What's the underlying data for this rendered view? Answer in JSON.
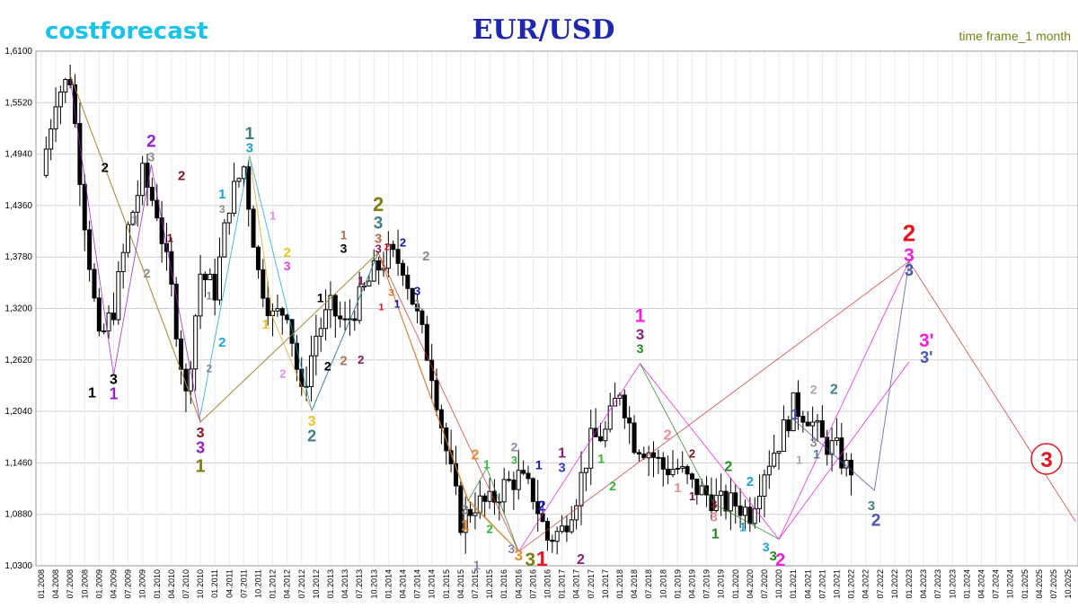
{
  "header": {
    "brand": "costforecast",
    "title": "EUR/USD",
    "timeframe": "time frame_1 month"
  },
  "chart_data": {
    "type": "candlestick",
    "title": "EUR/USD",
    "timeframe": "1 month",
    "ylim": [
      1.03,
      1.61
    ],
    "y_ticks": [
      "1,6100",
      "1,5520",
      "1,4940",
      "1,4360",
      "1,3780",
      "1,3200",
      "1,2620",
      "1,2040",
      "1,1460",
      "1,0880",
      "1,0300"
    ],
    "y_tick_values": [
      1.61,
      1.552,
      1.494,
      1.436,
      1.378,
      1.32,
      1.262,
      1.204,
      1.146,
      1.088,
      1.03
    ],
    "x_ticks": [
      "01.2008",
      "04.2008",
      "07.2008",
      "10.2008",
      "01.2009",
      "04.2009",
      "07.2009",
      "10.2009",
      "01.2010",
      "04.2010",
      "07.2010",
      "10.2010",
      "01.2011",
      "04.2011",
      "07.2011",
      "10.2011",
      "01.2012",
      "04.2012",
      "07.2012",
      "10.2012",
      "01.2013",
      "04.2013",
      "07.2013",
      "10.2013",
      "01.2014",
      "04.2014",
      "07.2014",
      "10.2014",
      "01.2015",
      "04.2015",
      "07.2015",
      "10.2015",
      "01.2016",
      "04.2016",
      "07.2016",
      "10.2016",
      "01.2017",
      "04.2017",
      "07.2017",
      "10.2017",
      "01.2018",
      "04.2018",
      "07.2018",
      "10.2018",
      "01.2019",
      "04.2019",
      "07.2019",
      "10.2019",
      "01.2020",
      "04.2020",
      "07.2020",
      "10.2020",
      "01.2021",
      "04.2021",
      "07.2021",
      "10.2021",
      "01.2022",
      "04.2022",
      "07.2022",
      "10.2022",
      "01.2023",
      "04.2023",
      "07.2023",
      "10.2023",
      "01.2024",
      "04.2024",
      "07.2024",
      "10.2024",
      "01.2025",
      "04.2025",
      "07.2025",
      "10.2025"
    ],
    "x_tick_quarter_index": [
      0,
      1,
      2,
      3,
      4,
      5,
      6,
      7,
      8,
      9,
      10,
      11,
      12,
      13,
      14,
      15,
      16,
      17,
      18,
      19,
      20,
      21,
      22,
      23,
      24,
      25,
      26,
      27,
      28,
      29,
      30,
      31,
      32,
      33,
      34,
      35,
      36,
      37,
      38,
      39,
      40,
      41,
      42,
      43,
      44,
      45,
      46,
      47,
      48,
      49,
      50,
      51,
      52,
      53,
      54,
      55,
      56,
      57,
      58,
      59,
      60,
      61,
      62,
      63,
      64,
      65,
      66,
      67,
      68,
      69,
      70,
      71
    ],
    "grid": true,
    "price_path_quarterly": [
      [
        0,
        1.47
      ],
      [
        1,
        1.56
      ],
      [
        2,
        1.58
      ],
      [
        3,
        1.42
      ],
      [
        4,
        1.28
      ],
      [
        5,
        1.32
      ],
      [
        6,
        1.41
      ],
      [
        7,
        1.47
      ],
      [
        8,
        1.43
      ],
      [
        9,
        1.34
      ],
      [
        10,
        1.22
      ],
      [
        11,
        1.36
      ],
      [
        12,
        1.34
      ],
      [
        13,
        1.44
      ],
      [
        14,
        1.48
      ],
      [
        15,
        1.36
      ],
      [
        16,
        1.31
      ],
      [
        17,
        1.32
      ],
      [
        18,
        1.22
      ],
      [
        19,
        1.29
      ],
      [
        20,
        1.32
      ],
      [
        21,
        1.3
      ],
      [
        22,
        1.33
      ],
      [
        23,
        1.36
      ],
      [
        24,
        1.38
      ],
      [
        25,
        1.37
      ],
      [
        26,
        1.31
      ],
      [
        27,
        1.25
      ],
      [
        28,
        1.16
      ],
      [
        29,
        1.08
      ],
      [
        30,
        1.1
      ],
      [
        31,
        1.1
      ],
      [
        32,
        1.12
      ],
      [
        33,
        1.13
      ],
      [
        34,
        1.11
      ],
      [
        35,
        1.06
      ],
      [
        36,
        1.07
      ],
      [
        37,
        1.11
      ],
      [
        38,
        1.17
      ],
      [
        39,
        1.18
      ],
      [
        40,
        1.23
      ],
      [
        41,
        1.17
      ],
      [
        42,
        1.16
      ],
      [
        43,
        1.14
      ],
      [
        44,
        1.14
      ],
      [
        45,
        1.12
      ],
      [
        46,
        1.11
      ],
      [
        47,
        1.1
      ],
      [
        48,
        1.1
      ],
      [
        49,
        1.09
      ],
      [
        50,
        1.14
      ],
      [
        51,
        1.17
      ],
      [
        52,
        1.21
      ],
      [
        53,
        1.2
      ],
      [
        54,
        1.17
      ],
      [
        55,
        1.16
      ],
      [
        56,
        1.13
      ]
    ],
    "forecast_labels": [
      {
        "text": "2",
        "color": "#e8141c"
      },
      {
        "text": "3",
        "color": "#ee1fe0"
      },
      {
        "text": "3",
        "color": "#4a55b4"
      },
      {
        "text": "3'",
        "color": "#ee1fe0"
      },
      {
        "text": "3'",
        "color": "#4a55b4"
      },
      {
        "text": "3",
        "color": "#e8141c",
        "note": "circled"
      }
    ]
  },
  "annotations": [
    {
      "t": "1",
      "c": "#000000",
      "s": 16,
      "q": 3.5,
      "p": 1.22
    },
    {
      "t": "3",
      "c": "#000000",
      "s": 16,
      "q": 5.0,
      "p": 1.235
    },
    {
      "t": "1",
      "c": "#9a1ed0",
      "s": 18,
      "q": 5.0,
      "p": 1.218
    },
    {
      "t": "2",
      "c": "#000000",
      "s": 15,
      "q": 4.4,
      "p": 1.474
    },
    {
      "t": "2",
      "c": "#9a1ed0",
      "s": 19,
      "q": 7.6,
      "p": 1.502
    },
    {
      "t": "3",
      "c": "#8a8a8a",
      "s": 14,
      "q": 7.6,
      "p": 1.486
    },
    {
      "t": "2",
      "c": "#8a1420",
      "s": 15,
      "q": 9.7,
      "p": 1.465
    },
    {
      "t": "1",
      "c": "#8a8a8a",
      "s": 14,
      "q": 6.5,
      "p": 1.415
    },
    {
      "t": "2",
      "c": "#8a8a8a",
      "s": 14,
      "q": 7.3,
      "p": 1.355
    },
    {
      "t": "1",
      "c": "#8a1420",
      "s": 13,
      "q": 8.9,
      "p": 1.395
    },
    {
      "t": "3",
      "c": "#8a1420",
      "s": 16,
      "q": 11.0,
      "p": 1.175
    },
    {
      "t": "3",
      "c": "#9a1ed0",
      "s": 18,
      "q": 11.0,
      "p": 1.157
    },
    {
      "t": "1",
      "c": "#7e7e12",
      "s": 20,
      "q": 11.0,
      "p": 1.136
    },
    {
      "t": "2",
      "c": "#8a8a8a",
      "s": 12,
      "q": 11.6,
      "p": 1.248
    },
    {
      "t": "1",
      "c": "#8a8a8a",
      "s": 12,
      "q": 11.6,
      "p": 1.33
    },
    {
      "t": "2",
      "c": "#1aa4d8",
      "s": 15,
      "q": 12.5,
      "p": 1.277
    },
    {
      "t": "1",
      "c": "#1aa4d8",
      "s": 15,
      "q": 12.5,
      "p": 1.444
    },
    {
      "t": "3",
      "c": "#8a8a8a",
      "s": 12,
      "q": 12.5,
      "p": 1.428
    },
    {
      "t": "1",
      "c": "#3f7f8a",
      "s": 19,
      "q": 14.4,
      "p": 1.511
    },
    {
      "t": "3",
      "c": "#1aa4d8",
      "s": 15,
      "q": 14.4,
      "p": 1.496
    },
    {
      "t": "1",
      "c": "#e48ae8",
      "s": 13,
      "q": 16.0,
      "p": 1.42
    },
    {
      "t": "1",
      "c": "#f5c21c",
      "s": 15,
      "q": 15.5,
      "p": 1.297
    },
    {
      "t": "2",
      "c": "#f5c21c",
      "s": 15,
      "q": 17.0,
      "p": 1.378
    },
    {
      "t": "3",
      "c": "#e048e0",
      "s": 14,
      "q": 17.0,
      "p": 1.363
    },
    {
      "t": "2",
      "c": "#e48ae8",
      "s": 13,
      "q": 16.7,
      "p": 1.242
    },
    {
      "t": "3",
      "c": "#f5c21c",
      "s": 16,
      "q": 18.7,
      "p": 1.188
    },
    {
      "t": "2",
      "c": "#3f7f8a",
      "s": 18,
      "q": 18.7,
      "p": 1.17
    },
    {
      "t": "1",
      "c": "#000000",
      "s": 14,
      "q": 19.3,
      "p": 1.327
    },
    {
      "t": "2",
      "c": "#000000",
      "s": 14,
      "q": 19.8,
      "p": 1.25
    },
    {
      "t": "2",
      "c": "#b07050",
      "s": 15,
      "q": 20.9,
      "p": 1.256
    },
    {
      "t": "3",
      "c": "#000000",
      "s": 14,
      "q": 20.9,
      "p": 1.383
    },
    {
      "t": "1",
      "c": "#b07050",
      "s": 14,
      "q": 20.9,
      "p": 1.398
    },
    {
      "t": "1",
      "c": "#8a1450",
      "s": 13,
      "q": 22.1,
      "p": 1.347
    },
    {
      "t": "2",
      "c": "#8a1450",
      "s": 13,
      "q": 22.1,
      "p": 1.258
    },
    {
      "t": "2",
      "c": "#7e7e12",
      "s": 22,
      "q": 23.3,
      "p": 1.43
    },
    {
      "t": "3",
      "c": "#3f7f8a",
      "s": 19,
      "q": 23.3,
      "p": 1.41
    },
    {
      "t": "3",
      "c": "#b07050",
      "s": 15,
      "q": 23.3,
      "p": 1.394
    },
    {
      "t": "3",
      "c": "#8a1450",
      "s": 13,
      "q": 23.3,
      "p": 1.383
    },
    {
      "t": "2",
      "c": "#e8141c",
      "s": 11,
      "q": 23.9,
      "p": 1.386
    },
    {
      "t": "1",
      "c": "#e8141c",
      "s": 11,
      "q": 23.5,
      "p": 1.318
    },
    {
      "t": "3",
      "c": "#e8641c",
      "s": 11,
      "q": 24.2,
      "p": 1.334
    },
    {
      "t": "1",
      "c": "#1414c8",
      "s": 12,
      "q": 24.6,
      "p": 1.321
    },
    {
      "t": "2",
      "c": "#1414c8",
      "s": 13,
      "q": 25.0,
      "p": 1.39
    },
    {
      "t": "3",
      "c": "#1414c8",
      "s": 13,
      "q": 26.0,
      "p": 1.335
    },
    {
      "t": "2",
      "c": "#8a8a8a",
      "s": 15,
      "q": 26.6,
      "p": 1.374
    },
    {
      "t": "1",
      "c": "#8a8a8a",
      "s": 15,
      "q": 26.0,
      "p": 1.32
    },
    {
      "t": "3",
      "c": "#8a8a8a",
      "s": 15,
      "q": 29.3,
      "p": 1.088
    },
    {
      "t": "1",
      "c": "#ee8a2e",
      "s": 17,
      "q": 29.3,
      "p": 1.07
    },
    {
      "t": "2",
      "c": "#ee8a2e",
      "s": 16,
      "q": 30.0,
      "p": 1.15
    },
    {
      "t": "1",
      "c": "#2eb82e",
      "s": 13,
      "q": 30.8,
      "p": 1.14
    },
    {
      "t": "2",
      "c": "#2eb82e",
      "s": 13,
      "q": 31.0,
      "p": 1.067
    },
    {
      "t": "2",
      "c": "#8a8aa8",
      "s": 14,
      "q": 32.7,
      "p": 1.159
    },
    {
      "t": "3",
      "c": "#2eb82e",
      "s": 12,
      "q": 32.7,
      "p": 1.145
    },
    {
      "t": "3",
      "c": "#8a8aa8",
      "s": 14,
      "q": 32.5,
      "p": 1.044
    },
    {
      "t": "3",
      "c": "#ee8a2e",
      "s": 17,
      "q": 33.0,
      "p": 1.036
    },
    {
      "t": "1",
      "c": "#8a8aa8",
      "s": 14,
      "q": 30.1,
      "p": 1.026
    },
    {
      "t": "3",
      "c": "#7e7e12",
      "s": 21,
      "q": 33.8,
      "p": 1.03
    },
    {
      "t": "1",
      "c": "#e8141c",
      "s": 23,
      "q": 34.6,
      "p": 1.03
    },
    {
      "t": "1",
      "c": "#1414c8",
      "s": 14,
      "q": 34.4,
      "p": 1.139
    },
    {
      "t": "2",
      "c": "#1414c8",
      "s": 16,
      "q": 34.6,
      "p": 1.092
    },
    {
      "t": "1",
      "c": "#8a1e78",
      "s": 16,
      "q": 36.0,
      "p": 1.152
    },
    {
      "t": "3",
      "c": "#3a3ad8",
      "s": 15,
      "q": 36.0,
      "p": 1.136
    },
    {
      "t": "2",
      "c": "#8a1e78",
      "s": 16,
      "q": 37.3,
      "p": 1.032
    },
    {
      "t": "1",
      "c": "#2eb82e",
      "s": 14,
      "q": 38.7,
      "p": 1.146
    },
    {
      "t": "2",
      "c": "#2eb82e",
      "s": 14,
      "q": 39.5,
      "p": 1.115
    },
    {
      "t": "1",
      "c": "#ee1fe0",
      "s": 21,
      "q": 41.4,
      "p": 1.305
    },
    {
      "t": "3",
      "c": "#8a1e78",
      "s": 17,
      "q": 41.4,
      "p": 1.285
    },
    {
      "t": "3",
      "c": "#1e8a1e",
      "s": 14,
      "q": 41.4,
      "p": 1.27
    },
    {
      "t": "2",
      "c": "#f08a96",
      "s": 16,
      "q": 43.3,
      "p": 1.172
    },
    {
      "t": "2",
      "c": "#8a1430",
      "s": 13,
      "q": 45.0,
      "p": 1.152
    },
    {
      "t": "1",
      "c": "#f08a96",
      "s": 15,
      "q": 44.0,
      "p": 1.113
    },
    {
      "t": "1",
      "c": "#8a1430",
      "s": 13,
      "q": 45.0,
      "p": 1.104
    },
    {
      "t": "3",
      "c": "#8a1430",
      "s": 13,
      "q": 46.5,
      "p": 1.095
    },
    {
      "t": "3",
      "c": "#f08a96",
      "s": 15,
      "q": 46.5,
      "p": 1.08
    },
    {
      "t": "1",
      "c": "#1e8a1e",
      "s": 16,
      "q": 46.6,
      "p": 1.061
    },
    {
      "t": "2",
      "c": "#1e8a1e",
      "s": 16,
      "q": 47.5,
      "p": 1.137
    },
    {
      "t": "2",
      "c": "#1aa4d8",
      "s": 15,
      "q": 49.0,
      "p": 1.12
    },
    {
      "t": "1",
      "c": "#1aa4d8",
      "s": 14,
      "q": 48.5,
      "p": 1.069
    },
    {
      "t": "3",
      "c": "#1aa4d8",
      "s": 14,
      "q": 50.1,
      "p": 1.046
    },
    {
      "t": "3",
      "c": "#1e8a1e",
      "s": 15,
      "q": 50.6,
      "p": 1.036
    },
    {
      "t": "2",
      "c": "#ee1fe0",
      "s": 20,
      "q": 51.1,
      "p": 1.03
    },
    {
      "t": "1",
      "c": "#4a55b4",
      "s": 17,
      "q": 52.1,
      "p": 1.195
    },
    {
      "t": "1",
      "c": "#a8a8a8",
      "s": 13,
      "q": 52.4,
      "p": 1.145
    },
    {
      "t": "2",
      "c": "#a8a8a8",
      "s": 14,
      "q": 53.4,
      "p": 1.224
    },
    {
      "t": "2",
      "c": "#3f7f8a",
      "s": 16,
      "q": 54.8,
      "p": 1.224
    },
    {
      "t": "3",
      "c": "#8a8a8a",
      "s": 14,
      "q": 53.4,
      "p": 1.164
    },
    {
      "t": "1",
      "c": "#3f7f8a",
      "s": 14,
      "q": 53.6,
      "p": 1.151
    },
    {
      "t": "3",
      "c": "#4a7f8a",
      "s": 15,
      "q": 57.4,
      "p": 1.093
    },
    {
      "t": "2",
      "c": "#4a55b4",
      "s": 19,
      "q": 57.7,
      "p": 1.075
    },
    {
      "t": "2",
      "c": "#e8141c",
      "s": 26,
      "q": 60.0,
      "p": 1.396
    },
    {
      "t": "3",
      "c": "#ee1fe0",
      "s": 21,
      "q": 60.0,
      "p": 1.373
    },
    {
      "t": "3",
      "c": "#4a55b4",
      "s": 18,
      "q": 60.0,
      "p": 1.357
    },
    {
      "t": "3'",
      "c": "#ee1fe0",
      "s": 21,
      "q": 61.2,
      "p": 1.277
    },
    {
      "t": "3'",
      "c": "#4a55b4",
      "s": 18,
      "q": 61.2,
      "p": 1.259
    }
  ]
}
